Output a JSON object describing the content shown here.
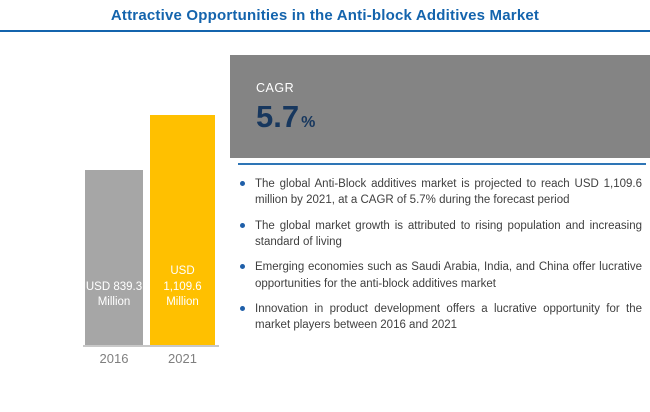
{
  "title": "Attractive Opportunities in the Anti-block Additives Market",
  "chart_data": {
    "type": "bar",
    "categories": [
      "2016",
      "2021"
    ],
    "values": [
      839.3,
      1109.6
    ],
    "bar_labels": [
      "USD 839.3 Million",
      "USD 1,109.6 Million"
    ],
    "bar_colors": [
      "#a6a6a6",
      "#ffc000"
    ],
    "title": "Attractive Opportunities in the Anti-block Additives Market",
    "xlabel": "",
    "ylabel": "",
    "ylim": [
      0,
      1200
    ],
    "grid": false,
    "legend": "none"
  },
  "cagr": {
    "label": "CAGR",
    "value": "5.7",
    "unit": "%"
  },
  "bullets": [
    "The global Anti-Block additives market is projected to reach USD 1,109.6 million by 2021, at a CAGR of 5.7% during the forecast period",
    "The global market growth is attributed to rising population and increasing standard of living",
    "Emerging economies such as Saudi Arabia, India, and China offer lucrative opportunities for the anti-block additives market",
    "Innovation in product development offers a lucrative opportunity for the market players between 2016 and 2021"
  ],
  "colors": {
    "title_blue": "#1464ad",
    "bar_gray": "#a6a6a6",
    "bar_yellow": "#ffc000",
    "cagr_bg": "#848484",
    "cagr_value_navy": "#17375e",
    "divider_blue": "#2e75b6",
    "bullet_blue": "#1f5fa9",
    "body_text": "#3f3f3f"
  }
}
